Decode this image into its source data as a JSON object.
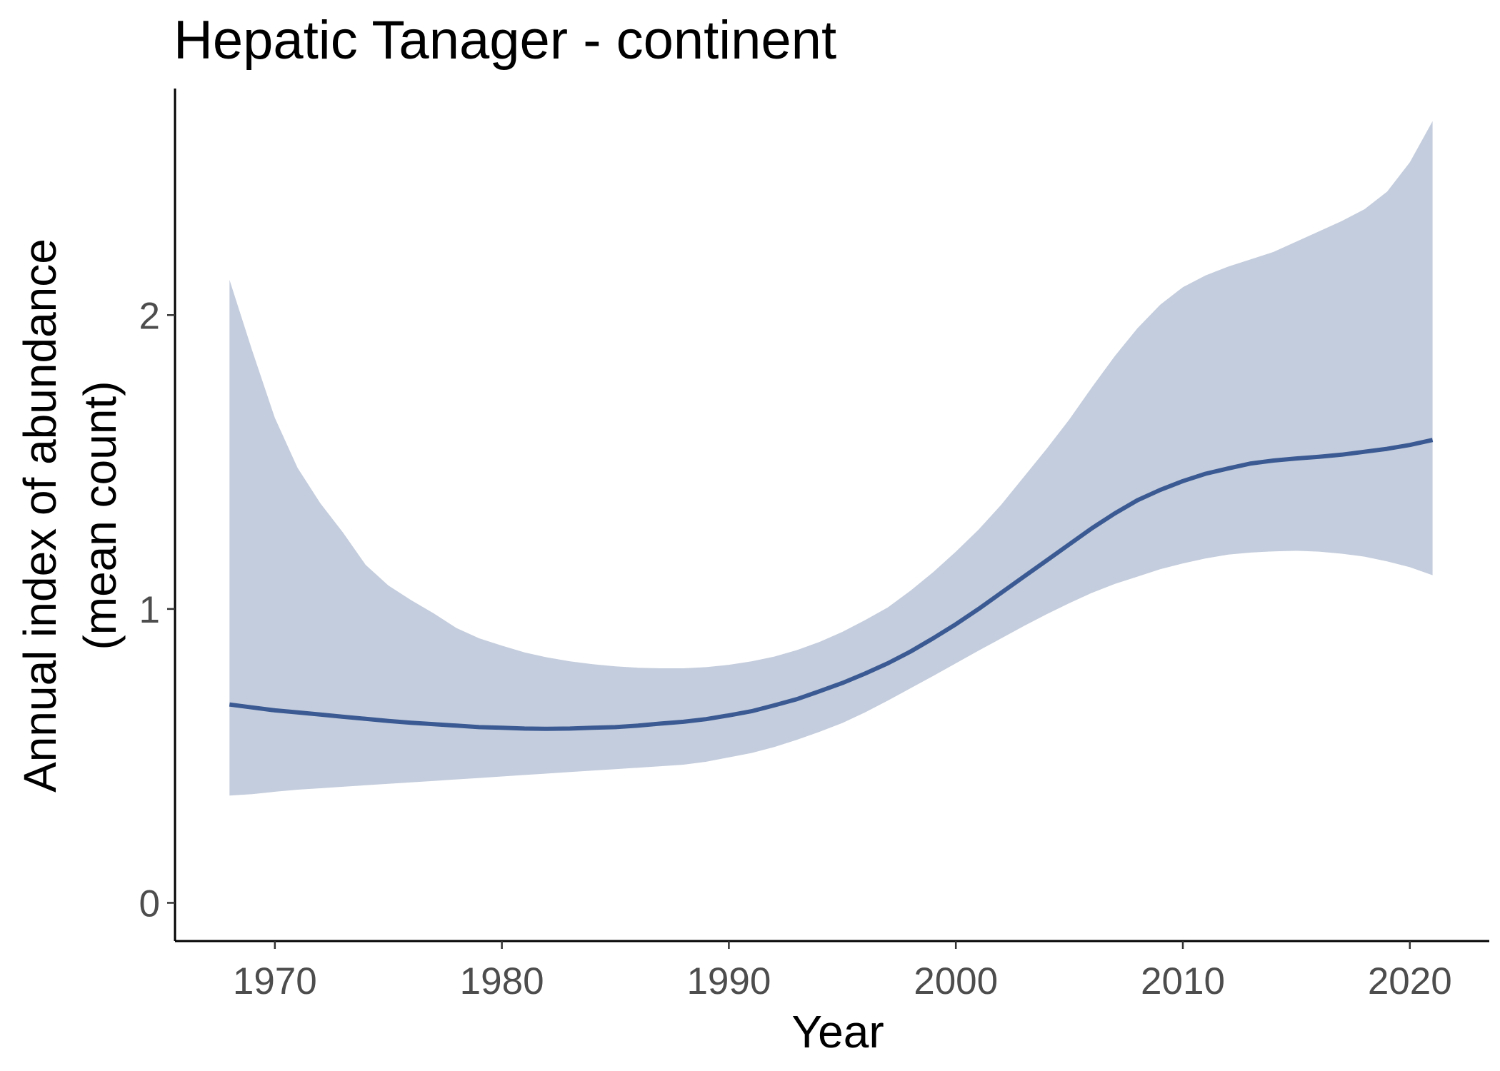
{
  "chart_data": {
    "type": "line",
    "title": "Hepatic Tanager - continent",
    "xlabel": "Year",
    "ylabel": [
      "Annual index of abundance",
      "(mean count)"
    ],
    "xlim": [
      1965.6,
      2023.5
    ],
    "ylim": [
      -0.13,
      2.8
    ],
    "x_ticks": [
      1970,
      1980,
      1990,
      2000,
      2010,
      2020
    ],
    "y_ticks": [
      0,
      1,
      2
    ],
    "grid": false,
    "legend": "none",
    "colors": {
      "line": "#3b5a93",
      "band": "#c4cddd"
    },
    "series": [
      {
        "x": [
          1968,
          1969,
          1970,
          1971,
          1972,
          1973,
          1974,
          1975,
          1976,
          1977,
          1978,
          1979,
          1980,
          1981,
          1982,
          1983,
          1984,
          1985,
          1986,
          1987,
          1988,
          1989,
          1990,
          1991,
          1992,
          1993,
          1994,
          1995,
          1996,
          1997,
          1998,
          1999,
          2000,
          2001,
          2002,
          2003,
          2004,
          2005,
          2006,
          2007,
          2008,
          2009,
          2010,
          2011,
          2012,
          2013,
          2014,
          2015,
          2016,
          2017,
          2018,
          2019,
          2020,
          2021
        ],
        "y": [
          0.675,
          0.665,
          0.655,
          0.648,
          0.641,
          0.633,
          0.626,
          0.619,
          0.613,
          0.608,
          0.603,
          0.598,
          0.596,
          0.593,
          0.592,
          0.593,
          0.596,
          0.598,
          0.603,
          0.61,
          0.616,
          0.625,
          0.638,
          0.652,
          0.672,
          0.693,
          0.72,
          0.748,
          0.78,
          0.815,
          0.855,
          0.9,
          0.948,
          1.0,
          1.055,
          1.11,
          1.165,
          1.22,
          1.275,
          1.325,
          1.37,
          1.405,
          1.435,
          1.46,
          1.478,
          1.495,
          1.505,
          1.512,
          1.518,
          1.525,
          1.535,
          1.545,
          1.558,
          1.575
        ],
        "lower": [
          0.365,
          0.37,
          0.378,
          0.385,
          0.39,
          0.395,
          0.4,
          0.405,
          0.41,
          0.415,
          0.42,
          0.425,
          0.43,
          0.435,
          0.44,
          0.445,
          0.45,
          0.455,
          0.46,
          0.465,
          0.47,
          0.48,
          0.495,
          0.51,
          0.53,
          0.555,
          0.582,
          0.612,
          0.648,
          0.688,
          0.73,
          0.772,
          0.815,
          0.858,
          0.9,
          0.942,
          0.982,
          1.02,
          1.055,
          1.085,
          1.11,
          1.135,
          1.155,
          1.172,
          1.185,
          1.192,
          1.196,
          1.198,
          1.195,
          1.188,
          1.178,
          1.162,
          1.142,
          1.115
        ],
        "upper": [
          2.12,
          1.88,
          1.65,
          1.48,
          1.36,
          1.26,
          1.15,
          1.08,
          1.03,
          0.985,
          0.935,
          0.9,
          0.875,
          0.852,
          0.835,
          0.822,
          0.812,
          0.805,
          0.8,
          0.798,
          0.798,
          0.802,
          0.81,
          0.822,
          0.838,
          0.86,
          0.888,
          0.922,
          0.962,
          1.005,
          1.062,
          1.125,
          1.195,
          1.27,
          1.355,
          1.45,
          1.545,
          1.645,
          1.755,
          1.86,
          1.955,
          2.035,
          2.095,
          2.135,
          2.165,
          2.19,
          2.215,
          2.25,
          2.285,
          2.32,
          2.36,
          2.42,
          2.52,
          2.66
        ]
      }
    ]
  }
}
